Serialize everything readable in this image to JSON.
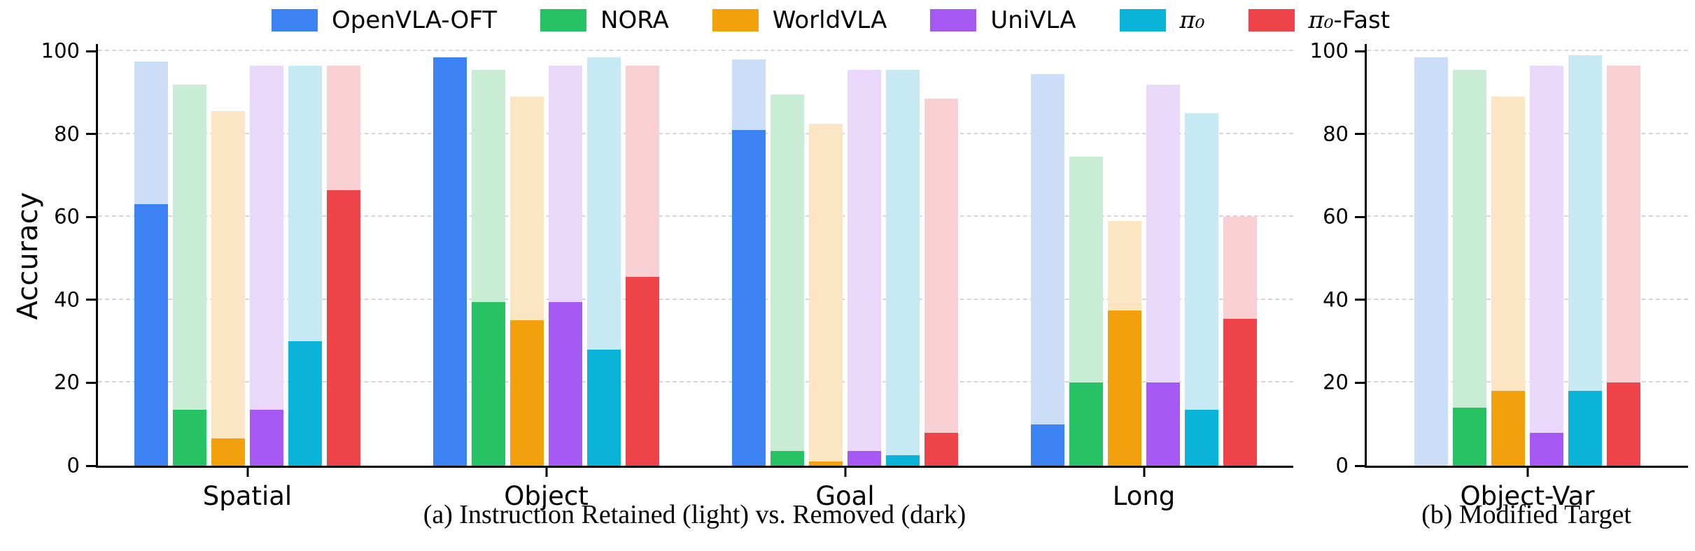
{
  "figure": {
    "background": "#ffffff",
    "axis_color": "#000000",
    "grid_color": "#d6d6d6"
  },
  "legend": {
    "items": [
      {
        "label": "OpenVLA-OFT",
        "color": "#3d82f2"
      },
      {
        "label": "NORA",
        "color": "#27c263"
      },
      {
        "label": "WorldVLA",
        "color": "#f2a10c"
      },
      {
        "label": "UniVLA",
        "color": "#a558f2"
      },
      {
        "label": "π₀",
        "color": "#0ab4d8"
      },
      {
        "label": "π₀-Fast",
        "color": "#ee4348"
      }
    ]
  },
  "chart_data": {
    "type": "bar",
    "title": "",
    "xlabel": "",
    "ylabel": "Accuracy",
    "yticks": [
      0,
      20,
      40,
      60,
      80,
      100
    ],
    "ylim": [
      0,
      101.7
    ],
    "grid": "horizontal-dashed",
    "legend_position": "top-center",
    "legend_entries": [
      "OpenVLA-OFT",
      "NORA",
      "WorldVLA",
      "UniVLA",
      "π₀",
      "π₀-Fast"
    ],
    "note": "Each model has an overlaid pair of bars: light = Instruction Retained, dark = Instruction Removed",
    "subplots": [
      {
        "id": "a",
        "caption": "(a) Instruction Retained (light) vs. Removed (dark)",
        "categories": [
          "Spatial",
          "Object",
          "Goal",
          "Long"
        ],
        "series": [
          {
            "name": "OpenVLA-OFT",
            "color": "#3d82f2",
            "light_color": "#ccddf8",
            "retained_light": [
              97.5,
              98.5,
              98.0,
              94.5
            ],
            "removed_dark": [
              63.0,
              98.5,
              81.0,
              10.0
            ]
          },
          {
            "name": "NORA",
            "color": "#27c263",
            "light_color": "#c9ecd5",
            "retained_light": [
              92.0,
              95.5,
              89.5,
              74.5
            ],
            "removed_dark": [
              13.5,
              39.5,
              3.5,
              20.0
            ]
          },
          {
            "name": "WorldVLA",
            "color": "#f2a10c",
            "light_color": "#fbe5c2",
            "retained_light": [
              85.5,
              89.0,
              82.5,
              59.0
            ],
            "removed_dark": [
              6.5,
              35.0,
              1.0,
              37.5
            ]
          },
          {
            "name": "UniVLA",
            "color": "#a558f2",
            "light_color": "#e9d8f9",
            "retained_light": [
              96.5,
              96.5,
              95.5,
              92.0
            ],
            "removed_dark": [
              13.5,
              39.5,
              3.5,
              20.0
            ]
          },
          {
            "name": "π₀",
            "color": "#0ab4d8",
            "light_color": "#c6e9f3",
            "retained_light": [
              96.5,
              98.5,
              95.5,
              85.0
            ],
            "removed_dark": [
              30.0,
              28.0,
              2.5,
              13.5
            ]
          },
          {
            "name": "π₀-Fast",
            "color": "#ee4348",
            "light_color": "#f8cfd3",
            "retained_light": [
              96.5,
              96.5,
              88.5,
              60.0
            ],
            "removed_dark": [
              66.5,
              45.5,
              8.0,
              35.5
            ]
          }
        ]
      },
      {
        "id": "b",
        "caption": "(b) Modified Target",
        "categories": [
          "Object-Var"
        ],
        "series": [
          {
            "name": "OpenVLA-OFT",
            "color": "#3d82f2",
            "light_color": "#ccddf8",
            "retained_light": [
              98.5
            ],
            "removed_dark": [
              0.0
            ]
          },
          {
            "name": "NORA",
            "color": "#27c263",
            "light_color": "#c9ecd5",
            "retained_light": [
              95.5
            ],
            "removed_dark": [
              14.0
            ]
          },
          {
            "name": "WorldVLA",
            "color": "#f2a10c",
            "light_color": "#fbe5c2",
            "retained_light": [
              89.0
            ],
            "removed_dark": [
              18.0
            ]
          },
          {
            "name": "UniVLA",
            "color": "#a558f2",
            "light_color": "#e9d8f9",
            "retained_light": [
              96.5
            ],
            "removed_dark": [
              8.0
            ]
          },
          {
            "name": "π₀",
            "color": "#0ab4d8",
            "light_color": "#c6e9f3",
            "retained_light": [
              99.0
            ],
            "removed_dark": [
              18.0
            ]
          },
          {
            "name": "π₀-Fast",
            "color": "#ee4348",
            "light_color": "#f8cfd3",
            "retained_light": [
              96.5
            ],
            "removed_dark": [
              20.0
            ]
          }
        ]
      }
    ]
  }
}
